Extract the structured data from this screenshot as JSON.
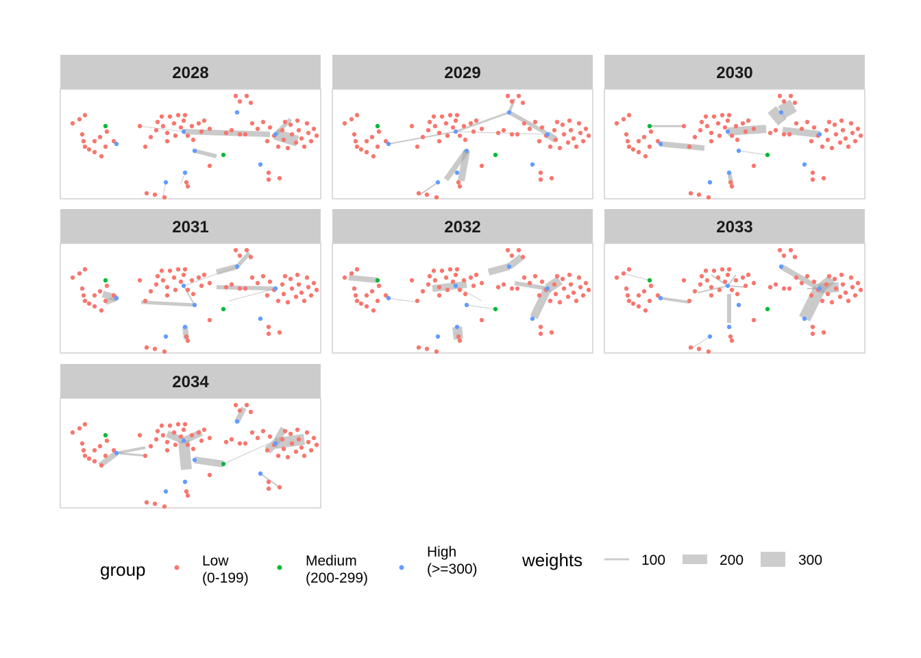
{
  "chart_data": {
    "type": "network",
    "facets": [
      "2028",
      "2029",
      "2030",
      "2031",
      "2032",
      "2033",
      "2034"
    ],
    "node_groups": [
      {
        "key": "Low",
        "label_lines": [
          "Low",
          "(0-199)"
        ],
        "color": "#F8766D"
      },
      {
        "key": "Medium",
        "label_lines": [
          "Medium",
          "(200-299)"
        ],
        "color": "#00BA38"
      },
      {
        "key": "High",
        "label_lines": [
          "High",
          "(>=300)"
        ],
        "color": "#619CFF"
      }
    ],
    "legend": {
      "group_title": "group",
      "weights_title": "weights",
      "weights_values": [
        "100",
        "200",
        "300"
      ],
      "position": "bottom"
    },
    "edge_color": "#a6a6a6",
    "panel_background": "#ffffff",
    "strip_background": "#cccccc"
  }
}
